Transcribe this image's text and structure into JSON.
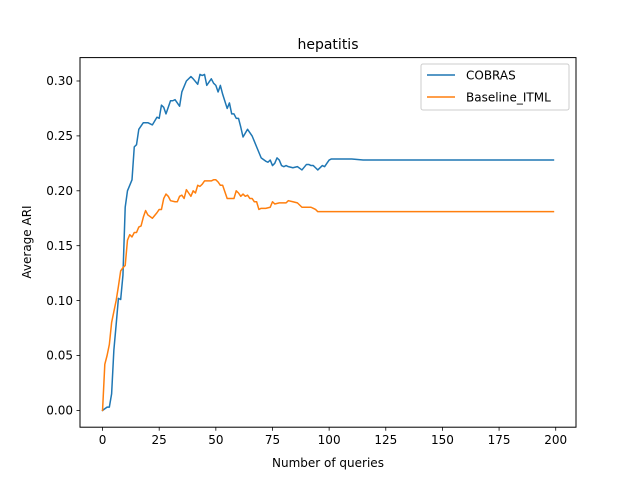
{
  "chart_data": {
    "type": "line",
    "title": "hepatitis",
    "xlabel": "Number of queries",
    "ylabel": "Average ARI",
    "xlim": [
      -9.95,
      208.95
    ],
    "ylim": [
      -0.0153,
      0.3213
    ],
    "xticks": [
      0,
      25,
      50,
      75,
      100,
      125,
      150,
      175,
      200
    ],
    "yticks": [
      0.0,
      0.05,
      0.1,
      0.15,
      0.2,
      0.25,
      0.3
    ],
    "xtick_labels": [
      "0",
      "25",
      "50",
      "75",
      "100",
      "125",
      "150",
      "175",
      "200"
    ],
    "ytick_labels": [
      "0.00",
      "0.05",
      "0.10",
      "0.15",
      "0.20",
      "0.25",
      "0.30"
    ],
    "legend_position": "top-right",
    "grid": false,
    "series": [
      {
        "name": "COBRAS",
        "color": "#1f77b4",
        "x": [
          0,
          2,
          3,
          4,
          5,
          6,
          7,
          8,
          9,
          10,
          11,
          12,
          13,
          14,
          15,
          16,
          18,
          20,
          22,
          24,
          25,
          26,
          27,
          28,
          30,
          31,
          32,
          33,
          34,
          35,
          37,
          39,
          40,
          42,
          43,
          44,
          45,
          46,
          47,
          48,
          49,
          50,
          51,
          52,
          53,
          55,
          56,
          57,
          58,
          59,
          60,
          61,
          62,
          64,
          66,
          68,
          70,
          72,
          73,
          74,
          75,
          76,
          77,
          78,
          79,
          80,
          81,
          82,
          84,
          86,
          88,
          90,
          91,
          92,
          93,
          94,
          95,
          97,
          98,
          99,
          100,
          101,
          102,
          103,
          104,
          105,
          110,
          115,
          120,
          130,
          140,
          150,
          160,
          170,
          180,
          190,
          199
        ],
        "y": [
          0.0,
          0.003,
          0.003,
          0.015,
          0.055,
          0.078,
          0.102,
          0.101,
          0.123,
          0.185,
          0.2,
          0.205,
          0.21,
          0.24,
          0.242,
          0.256,
          0.262,
          0.262,
          0.26,
          0.267,
          0.266,
          0.278,
          0.276,
          0.27,
          0.282,
          0.282,
          0.283,
          0.28,
          0.277,
          0.29,
          0.3,
          0.304,
          0.302,
          0.297,
          0.306,
          0.305,
          0.306,
          0.296,
          0.299,
          0.302,
          0.298,
          0.296,
          0.29,
          0.296,
          0.288,
          0.275,
          0.28,
          0.27,
          0.27,
          0.266,
          0.266,
          0.258,
          0.249,
          0.256,
          0.25,
          0.24,
          0.23,
          0.227,
          0.226,
          0.228,
          0.223,
          0.225,
          0.23,
          0.228,
          0.223,
          0.222,
          0.223,
          0.222,
          0.221,
          0.222,
          0.219,
          0.224,
          0.224,
          0.223,
          0.223,
          0.221,
          0.219,
          0.223,
          0.222,
          0.225,
          0.228,
          0.229,
          0.229,
          0.229,
          0.229,
          0.229,
          0.229,
          0.228,
          0.228,
          0.228,
          0.228,
          0.228,
          0.228,
          0.228,
          0.228,
          0.228,
          0.228
        ]
      },
      {
        "name": "Baseline_ITML",
        "color": "#ff7f0e",
        "x": [
          0,
          1,
          2,
          3,
          4,
          5,
          6,
          7,
          8,
          9,
          10,
          11,
          12,
          13,
          14,
          15,
          16,
          17,
          18,
          19,
          20,
          22,
          24,
          25,
          26,
          27,
          28,
          29,
          30,
          32,
          33,
          34,
          35,
          36,
          37,
          38,
          39,
          40,
          41,
          42,
          43,
          44,
          45,
          46,
          47,
          48,
          49,
          50,
          51,
          52,
          53,
          55,
          56,
          57,
          58,
          59,
          60,
          61,
          62,
          63,
          64,
          65,
          66,
          67,
          68,
          69,
          70,
          72,
          74,
          75,
          76,
          78,
          80,
          81,
          82,
          84,
          86,
          88,
          90,
          92,
          93,
          94,
          95,
          96,
          100,
          120,
          140,
          160,
          180,
          199
        ],
        "y": [
          0.0,
          0.042,
          0.05,
          0.06,
          0.08,
          0.09,
          0.1,
          0.113,
          0.127,
          0.13,
          0.132,
          0.155,
          0.16,
          0.158,
          0.162,
          0.162,
          0.167,
          0.168,
          0.176,
          0.182,
          0.178,
          0.175,
          0.18,
          0.183,
          0.183,
          0.193,
          0.197,
          0.195,
          0.191,
          0.19,
          0.19,
          0.195,
          0.196,
          0.193,
          0.201,
          0.198,
          0.195,
          0.2,
          0.198,
          0.205,
          0.204,
          0.206,
          0.209,
          0.209,
          0.209,
          0.209,
          0.21,
          0.21,
          0.208,
          0.205,
          0.205,
          0.193,
          0.193,
          0.193,
          0.193,
          0.2,
          0.198,
          0.195,
          0.197,
          0.195,
          0.196,
          0.193,
          0.193,
          0.19,
          0.19,
          0.183,
          0.184,
          0.184,
          0.185,
          0.19,
          0.188,
          0.189,
          0.189,
          0.189,
          0.191,
          0.19,
          0.189,
          0.185,
          0.185,
          0.185,
          0.184,
          0.183,
          0.181,
          0.181,
          0.181,
          0.181,
          0.181,
          0.181,
          0.181,
          0.181
        ]
      }
    ]
  }
}
